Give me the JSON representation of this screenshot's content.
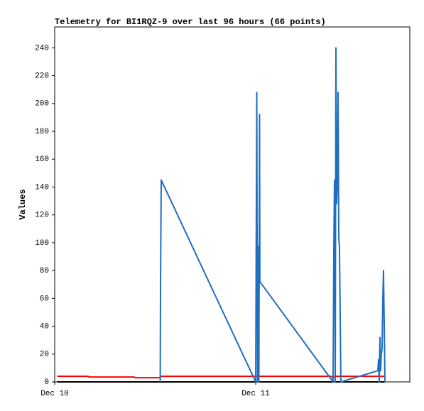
{
  "chart_data": {
    "type": "line",
    "title": "Telemetry for BI1RQZ-9 over last 96 hours (66 points)",
    "y_label": "Values",
    "xlim": [
      0,
      42.4
    ],
    "xticks": [
      {
        "value": 0,
        "label": "Dec 10"
      },
      {
        "value": 24,
        "label": "Dec 11"
      }
    ],
    "ylim": [
      0,
      255
    ],
    "yticks": [
      0,
      20,
      40,
      60,
      80,
      100,
      120,
      140,
      160,
      180,
      200,
      220,
      240
    ],
    "grid": false,
    "series": [
      {
        "color": "#000000",
        "x": [
          0.3,
          39.4
        ],
        "values": [
          0,
          0
        ]
      },
      {
        "color": "#ff0000",
        "x": [
          0.3,
          4.0,
          4.1,
          9.5,
          9.6,
          12.6,
          12.7,
          33.0,
          33.2,
          33.5,
          39.4
        ],
        "values": [
          4,
          4,
          3.5,
          3.5,
          3,
          3,
          4,
          4,
          3,
          4,
          4
        ]
      },
      {
        "color": "#1f6fc0",
        "x": [
          12.6,
          12.64,
          12.72,
          24.0,
          24.13,
          24.21,
          24.3,
          24.38,
          24.46,
          24.5,
          33.24,
          33.33,
          33.41,
          33.5,
          33.58,
          33.67,
          33.75,
          33.84,
          33.92,
          34.0,
          34.09,
          34.17,
          38.58,
          38.67,
          38.75,
          38.84,
          38.92,
          39.0,
          39.09,
          39.18,
          39.26,
          39.35,
          39.43
        ],
        "values": [
          0,
          72,
          145,
          0,
          208,
          0,
          97,
          0,
          192,
          72,
          0,
          97,
          145,
          0,
          240,
          128,
          145,
          208,
          104,
          97,
          48,
          0,
          8,
          16,
          0,
          32,
          8,
          20,
          24,
          60,
          80,
          40,
          0
        ]
      }
    ]
  }
}
